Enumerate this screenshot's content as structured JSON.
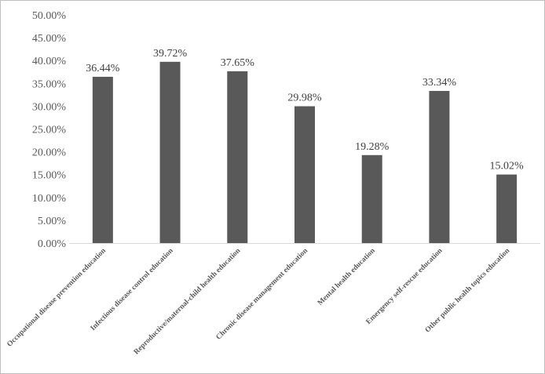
{
  "chart_data": {
    "type": "bar",
    "title": "",
    "xlabel": "",
    "ylabel": "",
    "categories": [
      "Occupational disease prevention education",
      "Infectious disease control  education",
      "Reproductive/maternal-child health  education",
      "Chronic disease management  education",
      "Mental health  education",
      "Emergency self-rescue  education",
      "Other public health topics  education"
    ],
    "values": [
      36.44,
      39.72,
      37.65,
      29.98,
      19.28,
      33.34,
      15.02
    ],
    "value_labels": [
      "36.44%",
      "39.72%",
      "37.65%",
      "29.98%",
      "19.28%",
      "33.34%",
      "15.02%"
    ],
    "ylim": [
      0,
      50
    ],
    "y_ticks": [
      "0.00%",
      "5.00%",
      "10.00%",
      "15.00%",
      "20.00%",
      "25.00%",
      "30.00%",
      "35.00%",
      "40.00%",
      "45.00%",
      "50.00%"
    ],
    "grid": false,
    "legend": "none",
    "bar_color": "#595959",
    "axis_color": "#d9d9d9"
  }
}
